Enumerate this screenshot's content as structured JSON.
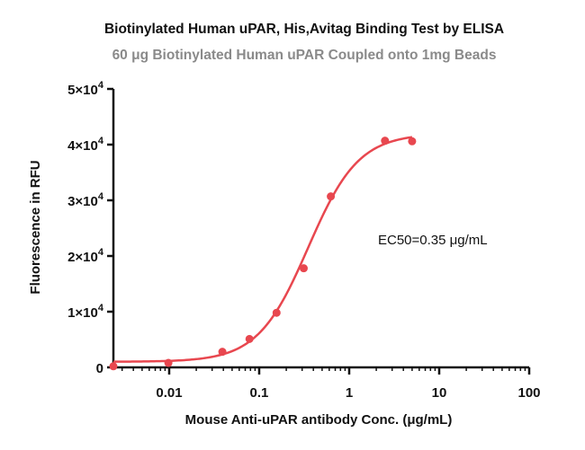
{
  "chart_data": {
    "type": "scatter",
    "title": "Biotinylated Human uPAR, His,Avitag Binding Test by ELISA",
    "subtitle": "60 μg Biotinylated Human uPAR Coupled onto 1mg Beads",
    "xlabel": "Mouse Anti-uPAR antibody  Conc. (μg/mL)",
    "ylabel": "Fluorescence in RFU",
    "x_scale": "log",
    "xlim": [
      0.0024,
      100
    ],
    "ylim": [
      0,
      50000
    ],
    "x_ticks": [
      {
        "value": 0.01,
        "label": "0.01"
      },
      {
        "value": 0.1,
        "label": "0.1"
      },
      {
        "value": 1,
        "label": "1"
      },
      {
        "value": 10,
        "label": "10"
      },
      {
        "value": 100,
        "label": "100"
      }
    ],
    "y_ticks": [
      {
        "value": 0,
        "base": "0",
        "exp": ""
      },
      {
        "value": 10000,
        "base": "1×10",
        "exp": "4"
      },
      {
        "value": 20000,
        "base": "2×10",
        "exp": "4"
      },
      {
        "value": 30000,
        "base": "3×10",
        "exp": "4"
      },
      {
        "value": 40000,
        "base": "4×10",
        "exp": "4"
      },
      {
        "value": 50000,
        "base": "5×10",
        "exp": "4"
      }
    ],
    "points": {
      "x": [
        0.0024,
        0.0098,
        0.039,
        0.078,
        0.156,
        0.3125,
        0.625,
        2.5,
        5.0
      ],
      "y": [
        200,
        800,
        2800,
        5100,
        9800,
        17800,
        30700,
        40700,
        40600
      ]
    },
    "fit": {
      "model": "4PL",
      "bottom": 1000,
      "top": 42000,
      "ec50": 0.35,
      "hill": 1.55,
      "x_range": [
        0.0024,
        5.0
      ]
    },
    "annotation": "EC50=0.35 μg/mL",
    "series_color": "#e8474f",
    "grid": false,
    "legend": "none"
  }
}
